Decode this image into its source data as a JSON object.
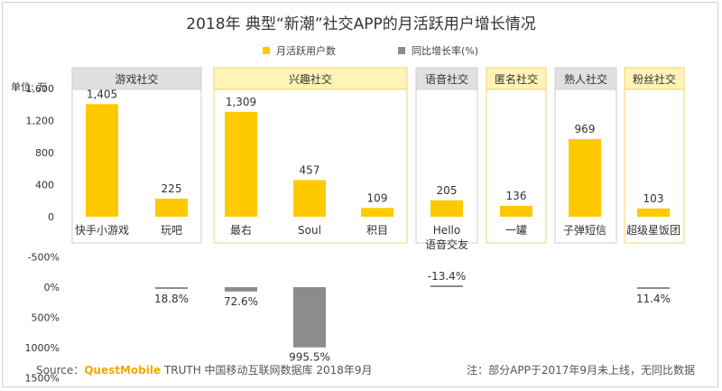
{
  "chart_data": {
    "type": "bar",
    "title": "2018年 典型“新潮”社交APP的月活跃用户增长情况",
    "legend": [
      {
        "label": "月活跃用户数",
        "color": "#FFC900"
      },
      {
        "label": "同比增长率(%)",
        "color": "#8C8C8C"
      }
    ],
    "legend_position": "top-center",
    "unit_label": "单位: 万",
    "top_axis": {
      "ticks": [
        0,
        400,
        800,
        1200,
        1600
      ],
      "tick_labels": [
        "0",
        "400",
        "800",
        "1,200",
        "1,600"
      ],
      "ylim": [
        0,
        1600
      ]
    },
    "bottom_axis": {
      "ticks": [
        -500,
        0,
        500,
        1000,
        1500
      ],
      "tick_labels": [
        "-500%",
        "0%",
        "500%",
        "1000%",
        "1500%"
      ],
      "ylim": [
        -500,
        1500
      ]
    },
    "groups": [
      {
        "name": "游戏社交",
        "header_color": "#E0E0E0",
        "apps": [
          0,
          1
        ]
      },
      {
        "name": "兴趣社交",
        "header_color": "#FFF3B8",
        "apps": [
          2,
          3,
          4
        ]
      },
      {
        "name": "语音社交",
        "header_color": "#E0E0E0",
        "apps": [
          5
        ]
      },
      {
        "name": "匿名社交",
        "header_color": "#FFF3B8",
        "apps": [
          6
        ]
      },
      {
        "name": "熟人社交",
        "header_color": "#E0E0E0",
        "apps": [
          7
        ]
      },
      {
        "name": "粉丝社交",
        "header_color": "#FFF3B8",
        "apps": [
          8
        ]
      }
    ],
    "categories": [
      "快手小游戏",
      "玩吧",
      "最右",
      "Soul",
      "积目",
      "Hello\n语音交友",
      "一罐",
      "子弹短信",
      "超级星饭团"
    ],
    "series": [
      {
        "name": "月活跃用户数",
        "values": [
          1405,
          225,
          1309,
          457,
          109,
          205,
          136,
          969,
          103
        ],
        "labels": [
          "1,405",
          "225",
          "1,309",
          "457",
          "109",
          "205",
          "136",
          "969",
          "103"
        ]
      },
      {
        "name": "同比增长率(%)",
        "values": [
          null,
          18.8,
          72.6,
          995.5,
          null,
          -13.4,
          null,
          null,
          11.4
        ],
        "labels": [
          "",
          "18.8%",
          "72.6%",
          "995.5%",
          "",
          "-13.4%",
          "",
          "",
          "11.4%"
        ]
      }
    ]
  },
  "footer": {
    "source_prefix": "Source：",
    "source_brand": "QuestMobile",
    "source_rest": " TRUTH 中国移动互联网数据库 2018年9月",
    "note": "注：部分APP于2017年9月未上线，无同比数据"
  }
}
